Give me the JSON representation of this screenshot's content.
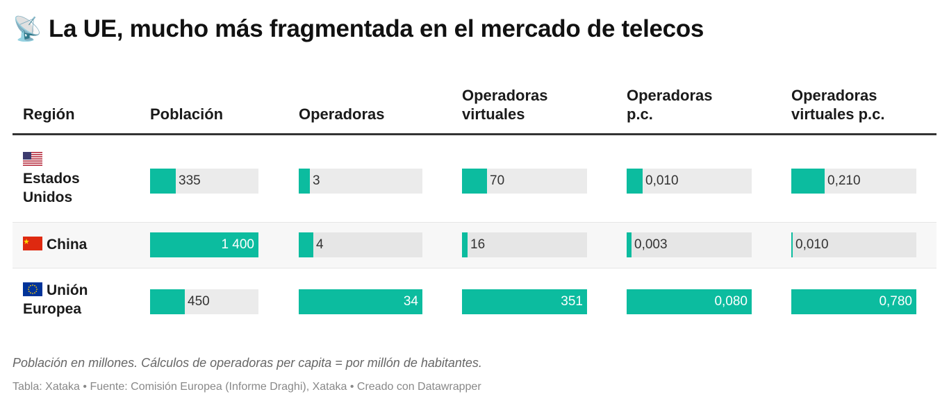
{
  "title": {
    "emoji": "📡",
    "emoji_name": "satellite-antenna",
    "text": "La UE, mucho más fragmentada en el mercado de telecos"
  },
  "chart_data": {
    "type": "table",
    "title": "La UE, mucho más fragmentada en el mercado de telecos",
    "columns": [
      "Región",
      "Población",
      "Operadoras",
      "Operadoras virtuales",
      "Operadoras p.c.",
      "Operadoras virtuales p.c."
    ],
    "column_header_lines": [
      [
        "Región"
      ],
      [
        "Población"
      ],
      [
        "Operadoras"
      ],
      [
        "Operadoras",
        "virtuales"
      ],
      [
        "Operadoras",
        "p.c."
      ],
      [
        "Operadoras",
        "virtuales p.c."
      ]
    ],
    "rows": [
      {
        "region": "Estados Unidos",
        "region_lines": [
          "Estados",
          "Unidos"
        ],
        "flag": "us",
        "values": [
          335,
          3,
          70,
          0.01,
          0.21
        ],
        "labels": [
          "335",
          "3",
          "70",
          "0,010",
          "0,210"
        ]
      },
      {
        "region": "China",
        "region_lines": [
          "China"
        ],
        "flag": "cn",
        "values": [
          1400,
          4,
          16,
          0.003,
          0.01
        ],
        "labels": [
          "1 400",
          "4",
          "16",
          "0,003",
          "0,010"
        ]
      },
      {
        "region": "Unión Europea",
        "region_lines": [
          "Unión",
          "Europea"
        ],
        "flag": "eu",
        "values": [
          450,
          34,
          351,
          0.08,
          0.78
        ],
        "labels": [
          "450",
          "34",
          "351",
          "0,080",
          "0,780"
        ]
      }
    ],
    "bar_column_max": [
      1400,
      34,
      351,
      0.08,
      0.78
    ],
    "bar_color": "#0cbc9f",
    "bar_background": "#ebebeb"
  },
  "notes": "Población en millones. Cálculos de operadoras per capita = por millón de habitantes.",
  "source": "Tabla: Xataka • Fuente: Comisión Europea (Informe Draghi), Xataka • Creado con Datawrapper"
}
